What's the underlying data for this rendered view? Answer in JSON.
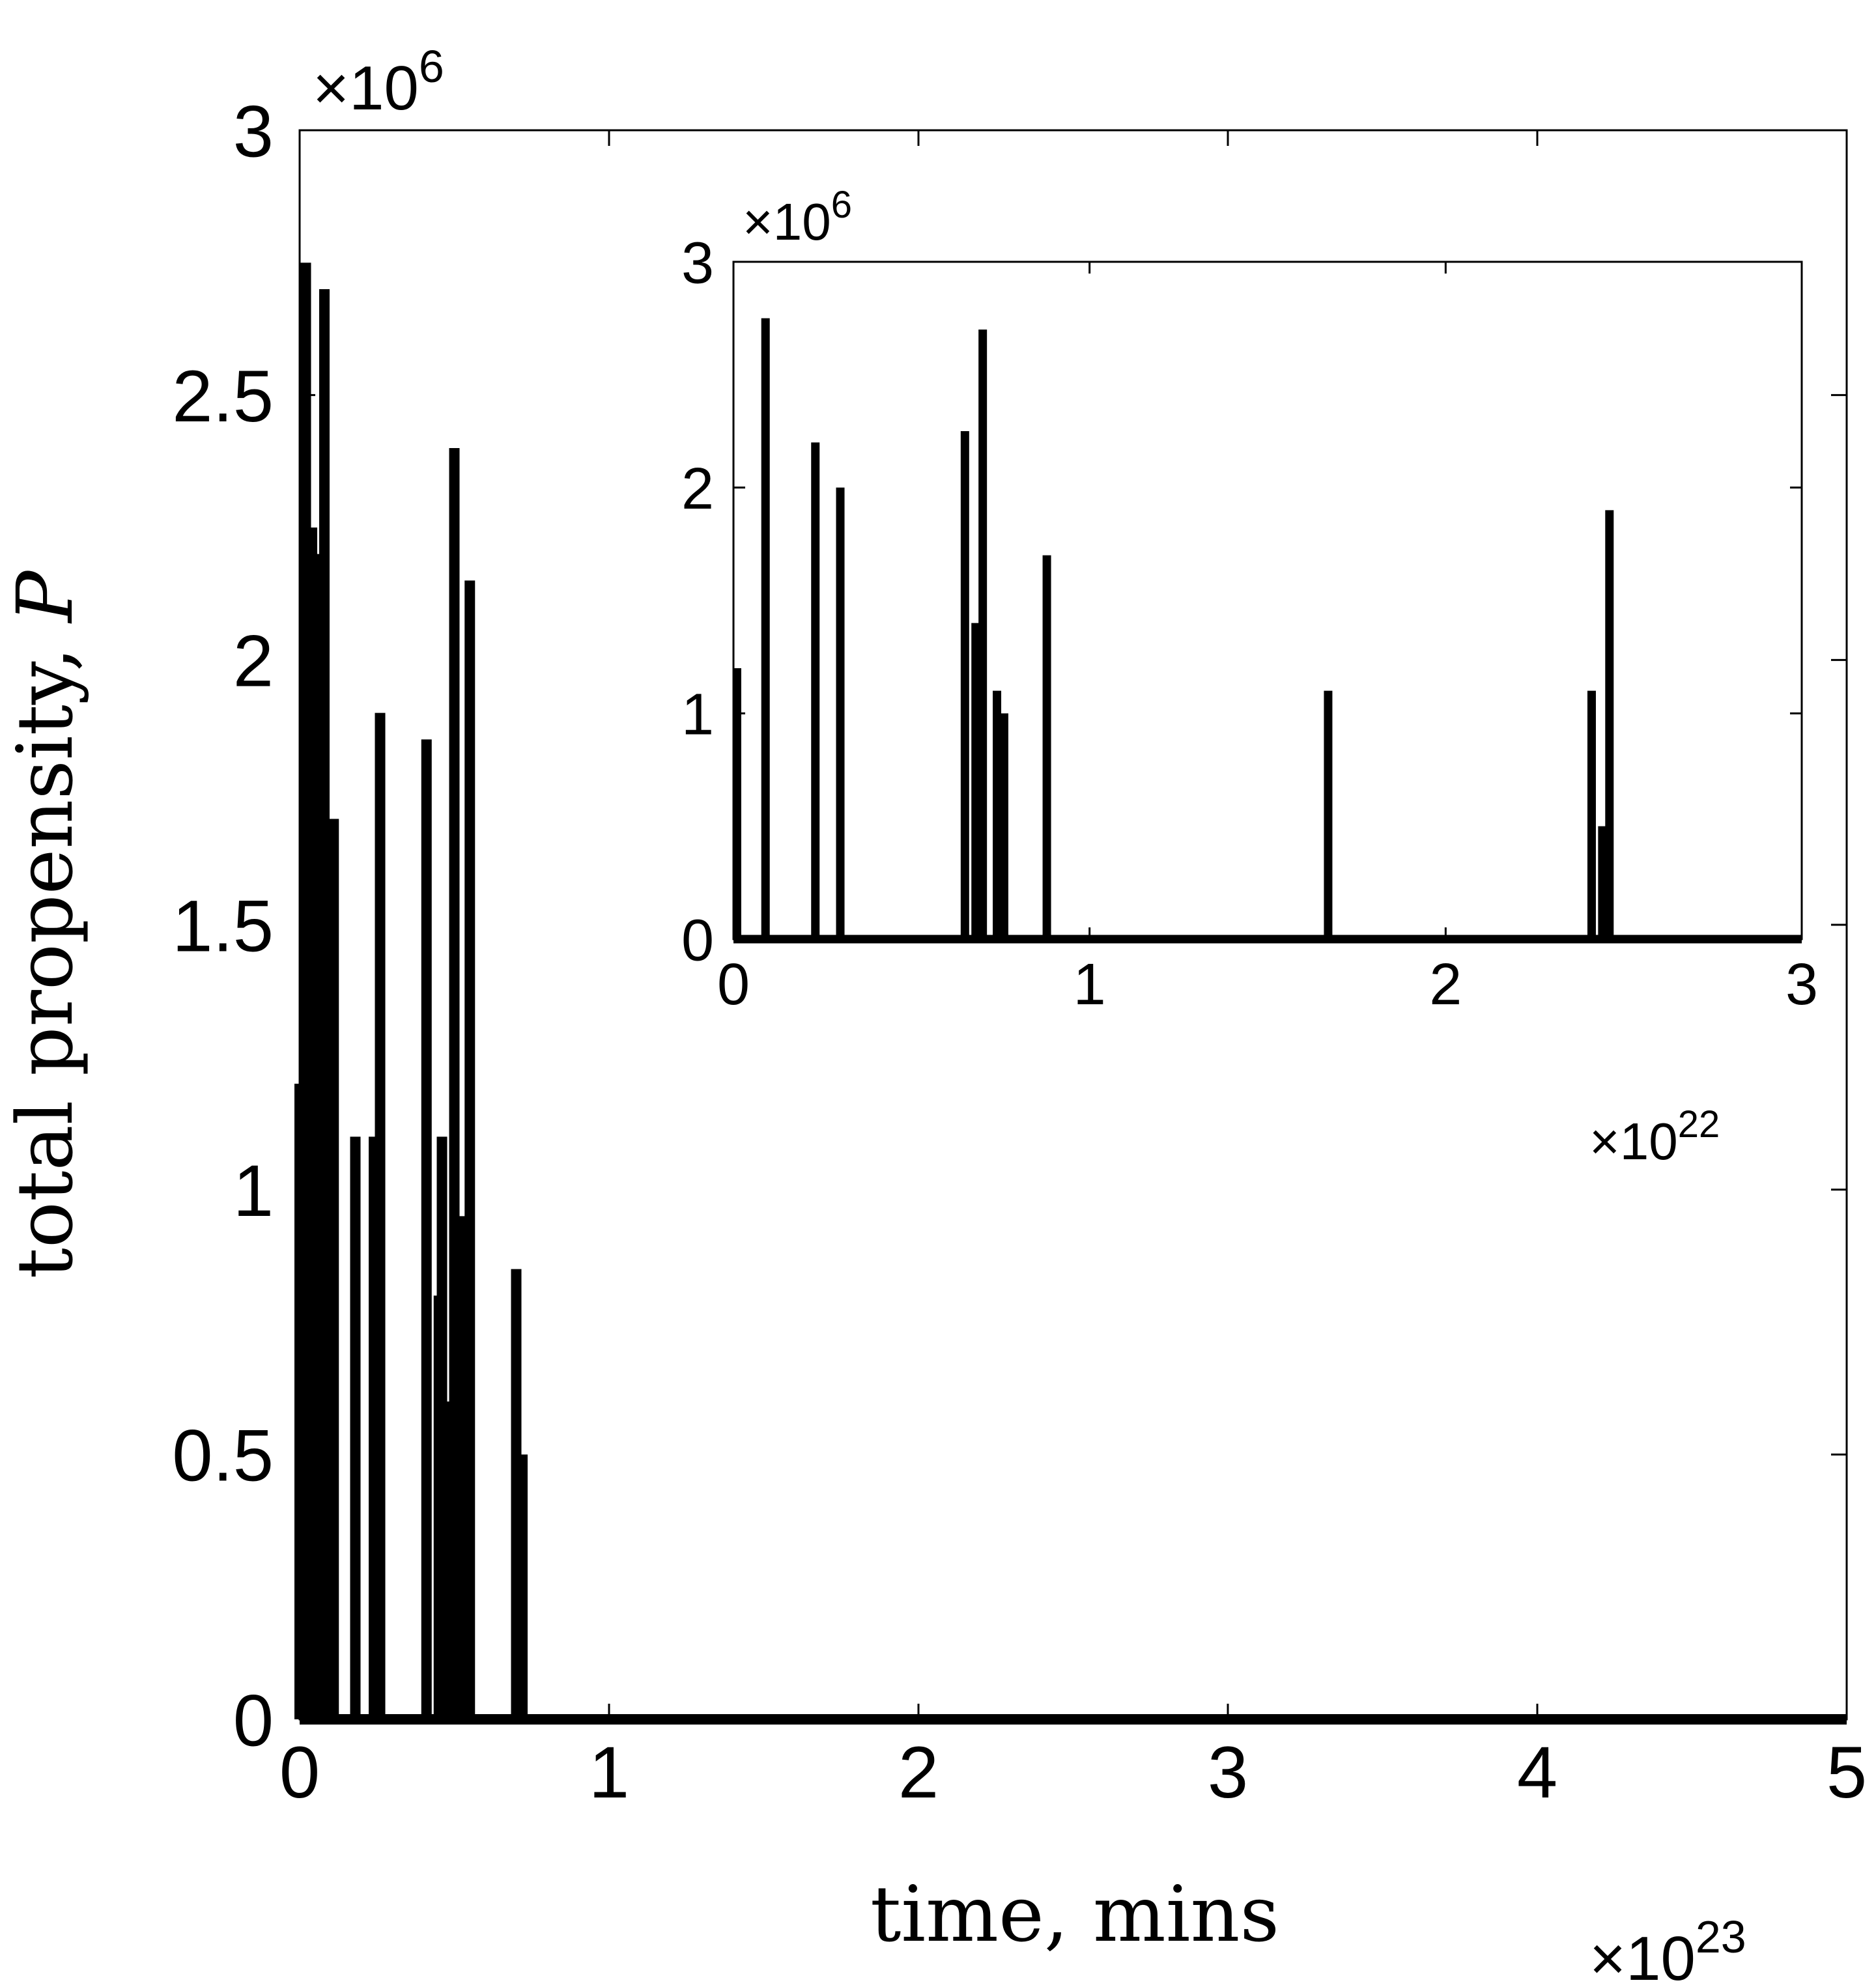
{
  "chart_data": [
    {
      "id": "main",
      "type": "line",
      "title": "",
      "xlabel": "time, mins",
      "ylabel_text": "total propensity, ",
      "ylabel_symbol": "P",
      "xlim": [
        0,
        5
      ],
      "ylim": [
        0,
        3
      ],
      "xticks": [
        "0",
        "1",
        "2",
        "3",
        "4",
        "5"
      ],
      "yticks": [
        "0",
        "0.5",
        "1",
        "1.5",
        "2",
        "2.5",
        "3"
      ],
      "x_exponent": "23",
      "y_exponent": "6",
      "exponent_prefix": "×10",
      "grid": false,
      "legend": "none",
      "color": "#000000",
      "spikes": [
        {
          "x": 0.0,
          "y": 1.2
        },
        {
          "x": 0.02,
          "y": 2.75
        },
        {
          "x": 0.04,
          "y": 2.25
        },
        {
          "x": 0.06,
          "y": 2.2
        },
        {
          "x": 0.08,
          "y": 2.7
        },
        {
          "x": 0.09,
          "y": 1.2
        },
        {
          "x": 0.11,
          "y": 1.7
        },
        {
          "x": 0.18,
          "y": 1.1
        },
        {
          "x": 0.24,
          "y": 1.1
        },
        {
          "x": 0.26,
          "y": 1.9
        },
        {
          "x": 0.41,
          "y": 1.85
        },
        {
          "x": 0.45,
          "y": 0.8
        },
        {
          "x": 0.46,
          "y": 1.1
        },
        {
          "x": 0.48,
          "y": 0.6
        },
        {
          "x": 0.5,
          "y": 2.4
        },
        {
          "x": 0.52,
          "y": 0.95
        },
        {
          "x": 0.55,
          "y": 2.15
        },
        {
          "x": 0.7,
          "y": 0.85
        },
        {
          "x": 0.72,
          "y": 0.5
        }
      ]
    },
    {
      "id": "inset",
      "type": "line",
      "title": "",
      "xlim": [
        0,
        3
      ],
      "ylim": [
        0,
        3
      ],
      "xticks": [
        "0",
        "1",
        "2",
        "3"
      ],
      "yticks": [
        "0",
        "1",
        "2",
        "3"
      ],
      "x_exponent": "22",
      "y_exponent": "6",
      "exponent_prefix": "×10",
      "grid": false,
      "legend": "none",
      "color": "#000000",
      "spikes": [
        {
          "x": 0.01,
          "y": 1.2
        },
        {
          "x": 0.09,
          "y": 2.75
        },
        {
          "x": 0.23,
          "y": 2.2
        },
        {
          "x": 0.3,
          "y": 2.0
        },
        {
          "x": 0.65,
          "y": 2.25
        },
        {
          "x": 0.68,
          "y": 1.4
        },
        {
          "x": 0.69,
          "y": 0.75
        },
        {
          "x": 0.7,
          "y": 2.7
        },
        {
          "x": 0.74,
          "y": 1.1
        },
        {
          "x": 0.76,
          "y": 1.0
        },
        {
          "x": 0.88,
          "y": 1.7
        },
        {
          "x": 1.67,
          "y": 1.1
        },
        {
          "x": 2.41,
          "y": 1.1
        },
        {
          "x": 2.44,
          "y": 0.5
        },
        {
          "x": 2.46,
          "y": 1.9
        }
      ]
    }
  ]
}
